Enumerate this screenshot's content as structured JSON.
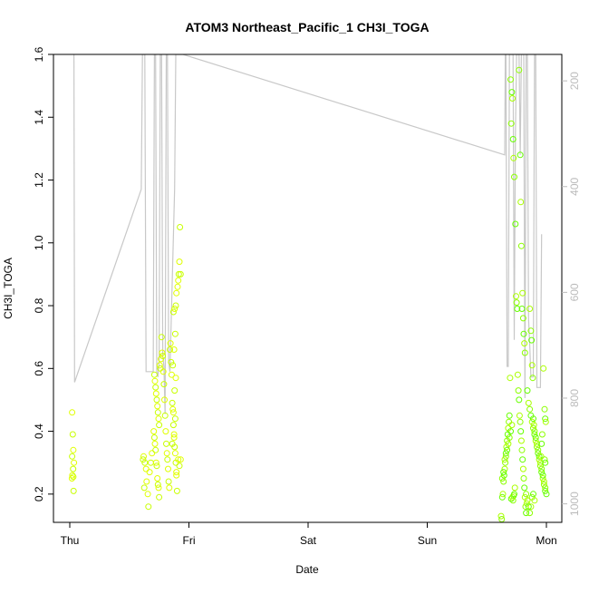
{
  "chart_data": {
    "type": "scatter",
    "title": "ATOM3 Northeast_Pacific_1 CH3I_TOGA",
    "xlabel": "Date",
    "ylabel": "CH3I_TOGA",
    "x_ticks": [
      "Thu",
      "Fri",
      "Sat",
      "Sun",
      "Mon"
    ],
    "y_ticks": [
      "0.2",
      "0.4",
      "0.6",
      "0.8",
      "1.0",
      "1.2",
      "1.4",
      "1.6"
    ],
    "y_tick_values": [
      0.2,
      0.4,
      0.6,
      0.8,
      1.0,
      1.2,
      1.4,
      1.6
    ],
    "ylim": [
      0.11,
      1.6
    ],
    "y2_ticks": [
      "200",
      "400",
      "600",
      "800",
      "1000"
    ],
    "y2_tick_values": [
      200,
      400,
      600,
      800,
      1000
    ],
    "y2lim": [
      1035,
      150
    ],
    "xlim_days": [
      -0.025,
      4.1
    ],
    "grid": false,
    "point_colors": [
      "#e0ff00",
      "#c8ff00",
      "#aaff00",
      "#8cff00",
      "#66ff00"
    ],
    "line_color": "#c8c8c8",
    "series": [
      {
        "role": "CH3I_TOGA points",
        "points": [
          [
            0.02,
            0.46
          ],
          [
            0.025,
            0.39
          ],
          [
            0.03,
            0.34
          ],
          [
            0.02,
            0.32
          ],
          [
            0.035,
            0.3
          ],
          [
            0.028,
            0.28
          ],
          [
            0.022,
            0.26
          ],
          [
            0.03,
            0.255
          ],
          [
            0.018,
            0.25
          ],
          [
            0.032,
            0.21
          ],
          [
            0.62,
            0.32
          ],
          [
            0.63,
            0.3
          ],
          [
            0.64,
            0.28
          ],
          [
            0.615,
            0.31
          ],
          [
            0.645,
            0.24
          ],
          [
            0.625,
            0.22
          ],
          [
            0.655,
            0.2
          ],
          [
            0.66,
            0.16
          ],
          [
            0.67,
            0.27
          ],
          [
            0.68,
            0.3
          ],
          [
            0.69,
            0.33
          ],
          [
            0.71,
            0.58
          ],
          [
            0.715,
            0.56
          ],
          [
            0.72,
            0.54
          ],
          [
            0.725,
            0.52
          ],
          [
            0.73,
            0.5
          ],
          [
            0.735,
            0.48
          ],
          [
            0.74,
            0.46
          ],
          [
            0.745,
            0.44
          ],
          [
            0.75,
            0.42
          ],
          [
            0.705,
            0.4
          ],
          [
            0.71,
            0.38
          ],
          [
            0.715,
            0.36
          ],
          [
            0.72,
            0.34
          ],
          [
            0.725,
            0.3
          ],
          [
            0.73,
            0.29
          ],
          [
            0.735,
            0.25
          ],
          [
            0.74,
            0.23
          ],
          [
            0.745,
            0.22
          ],
          [
            0.75,
            0.19
          ],
          [
            0.755,
            0.61
          ],
          [
            0.76,
            0.6
          ],
          [
            0.765,
            0.63
          ],
          [
            0.77,
            0.7
          ],
          [
            0.775,
            0.65
          ],
          [
            0.78,
            0.64
          ],
          [
            0.785,
            0.59
          ],
          [
            0.79,
            0.55
          ],
          [
            0.795,
            0.5
          ],
          [
            0.8,
            0.45
          ],
          [
            0.805,
            0.4
          ],
          [
            0.81,
            0.36
          ],
          [
            0.815,
            0.33
          ],
          [
            0.82,
            0.31
          ],
          [
            0.825,
            0.28
          ],
          [
            0.83,
            0.24
          ],
          [
            0.835,
            0.22
          ],
          [
            0.84,
            0.66
          ],
          [
            0.845,
            0.68
          ],
          [
            0.85,
            0.62
          ],
          [
            0.855,
            0.58
          ],
          [
            0.86,
            0.49
          ],
          [
            0.865,
            0.47
          ],
          [
            0.87,
            0.42
          ],
          [
            0.875,
            0.38
          ],
          [
            0.88,
            0.35
          ],
          [
            0.885,
            0.33
          ],
          [
            0.89,
            0.3
          ],
          [
            0.895,
            0.27
          ],
          [
            0.87,
            0.78
          ],
          [
            0.88,
            0.79
          ],
          [
            0.89,
            0.8
          ],
          [
            0.895,
            0.84
          ],
          [
            0.885,
            0.71
          ],
          [
            0.875,
            0.66
          ],
          [
            0.865,
            0.61
          ],
          [
            0.89,
            0.57
          ],
          [
            0.88,
            0.53
          ],
          [
            0.87,
            0.46
          ],
          [
            0.885,
            0.44
          ],
          [
            0.875,
            0.39
          ],
          [
            0.86,
            0.36
          ],
          [
            0.895,
            0.26
          ],
          [
            0.9,
            0.21
          ],
          [
            0.91,
            0.88
          ],
          [
            0.915,
            0.9
          ],
          [
            0.92,
            0.94
          ],
          [
            0.925,
            1.05
          ],
          [
            0.905,
            0.86
          ],
          [
            0.93,
            0.9
          ],
          [
            0.91,
            0.31
          ],
          [
            0.92,
            0.29
          ],
          [
            0.93,
            0.31
          ],
          [
            3.62,
            0.13
          ],
          [
            3.625,
            0.12
          ],
          [
            3.63,
            0.19
          ],
          [
            3.635,
            0.2
          ],
          [
            3.64,
            0.24
          ],
          [
            3.645,
            0.26
          ],
          [
            3.65,
            0.28
          ],
          [
            3.655,
            0.3
          ],
          [
            3.66,
            0.33
          ],
          [
            3.665,
            0.35
          ],
          [
            3.67,
            0.37
          ],
          [
            3.675,
            0.39
          ],
          [
            3.68,
            0.41
          ],
          [
            3.685,
            0.43
          ],
          [
            3.69,
            0.45
          ],
          [
            3.695,
            0.57
          ],
          [
            3.63,
            0.25
          ],
          [
            3.64,
            0.27
          ],
          [
            3.65,
            0.31
          ],
          [
            3.66,
            0.32
          ],
          [
            3.67,
            0.34
          ],
          [
            3.68,
            0.36
          ],
          [
            3.69,
            0.38
          ],
          [
            3.7,
            0.4
          ],
          [
            3.71,
            0.42
          ],
          [
            3.72,
            0.18
          ],
          [
            3.705,
            0.185
          ],
          [
            3.715,
            0.19
          ],
          [
            3.725,
            0.195
          ],
          [
            3.73,
            0.2
          ],
          [
            3.735,
            0.22
          ],
          [
            3.7,
            1.52
          ],
          [
            3.71,
            1.48
          ],
          [
            3.715,
            1.46
          ],
          [
            3.705,
            1.38
          ],
          [
            3.72,
            1.33
          ],
          [
            3.725,
            1.27
          ],
          [
            3.73,
            1.21
          ],
          [
            3.74,
            1.06
          ],
          [
            3.745,
            0.83
          ],
          [
            3.75,
            0.81
          ],
          [
            3.755,
            0.79
          ],
          [
            3.76,
            0.58
          ],
          [
            3.765,
            0.53
          ],
          [
            3.77,
            0.5
          ],
          [
            3.775,
            0.45
          ],
          [
            3.78,
            0.43
          ],
          [
            3.785,
            0.4
          ],
          [
            3.79,
            0.37
          ],
          [
            3.795,
            0.34
          ],
          [
            3.8,
            0.31
          ],
          [
            3.805,
            0.28
          ],
          [
            3.81,
            0.25
          ],
          [
            3.815,
            0.22
          ],
          [
            3.82,
            0.19
          ],
          [
            3.825,
            0.16
          ],
          [
            3.83,
            0.14
          ],
          [
            3.835,
            0.17
          ],
          [
            3.77,
            1.55
          ],
          [
            3.78,
            1.28
          ],
          [
            3.785,
            1.13
          ],
          [
            3.79,
            0.99
          ],
          [
            3.795,
            0.79
          ],
          [
            3.8,
            0.84
          ],
          [
            3.805,
            0.76
          ],
          [
            3.81,
            0.71
          ],
          [
            3.815,
            0.68
          ],
          [
            3.82,
            0.65
          ],
          [
            3.84,
            0.53
          ],
          [
            3.85,
            0.49
          ],
          [
            3.86,
            0.47
          ],
          [
            3.87,
            0.45
          ],
          [
            3.88,
            0.43
          ],
          [
            3.89,
            0.41
          ],
          [
            3.9,
            0.39
          ],
          [
            3.91,
            0.37
          ],
          [
            3.92,
            0.35
          ],
          [
            3.93,
            0.33
          ],
          [
            3.94,
            0.31
          ],
          [
            3.95,
            0.29
          ],
          [
            3.96,
            0.27
          ],
          [
            3.97,
            0.25
          ],
          [
            3.98,
            0.23
          ],
          [
            3.99,
            0.21
          ],
          [
            3.86,
            0.79
          ],
          [
            3.87,
            0.72
          ],
          [
            3.875,
            0.69
          ],
          [
            3.88,
            0.61
          ],
          [
            3.885,
            0.57
          ],
          [
            3.89,
            0.44
          ],
          [
            3.895,
            0.42
          ],
          [
            3.9,
            0.4
          ],
          [
            3.91,
            0.38
          ],
          [
            3.92,
            0.36
          ],
          [
            3.93,
            0.34
          ],
          [
            3.94,
            0.32
          ],
          [
            3.95,
            0.3
          ],
          [
            3.96,
            0.28
          ],
          [
            3.97,
            0.26
          ],
          [
            3.98,
            0.24
          ],
          [
            3.99,
            0.22
          ],
          [
            4.0,
            0.2
          ],
          [
            3.975,
            0.6
          ],
          [
            3.985,
            0.47
          ],
          [
            3.99,
            0.44
          ],
          [
            3.995,
            0.43
          ],
          [
            3.965,
            0.39
          ],
          [
            3.96,
            0.36
          ],
          [
            3.955,
            0.32
          ],
          [
            3.985,
            0.31
          ],
          [
            3.99,
            0.3
          ],
          [
            3.87,
            0.16
          ],
          [
            3.88,
            0.19
          ],
          [
            3.89,
            0.2
          ],
          [
            3.9,
            0.18
          ],
          [
            3.86,
            0.14
          ],
          [
            3.85,
            0.16
          ],
          [
            3.84,
            0.18
          ],
          [
            3.83,
            0.2
          ]
        ]
      },
      {
        "role": "grey trace (right axis)",
        "points": [
          [
            0.03,
            150
          ],
          [
            0.035,
            150
          ],
          [
            0.04,
            770
          ],
          [
            0.6,
            405
          ],
          [
            0.61,
            150
          ],
          [
            0.62,
            150
          ],
          [
            0.63,
            150
          ],
          [
            0.64,
            750
          ],
          [
            0.7,
            750
          ],
          [
            0.71,
            150
          ],
          [
            0.72,
            150
          ],
          [
            0.73,
            750
          ],
          [
            0.74,
            760
          ],
          [
            0.75,
            730
          ],
          [
            0.76,
            150
          ],
          [
            0.77,
            150
          ],
          [
            0.78,
            720
          ],
          [
            0.79,
            740
          ],
          [
            0.8,
            830
          ],
          [
            0.81,
            150
          ],
          [
            0.82,
            150
          ],
          [
            0.83,
            730
          ],
          [
            0.84,
            750
          ],
          [
            0.88,
            405
          ],
          [
            0.89,
            150
          ],
          [
            0.9,
            150
          ],
          [
            0.92,
            150
          ],
          [
            0.95,
            150
          ],
          [
            3.65,
            340
          ],
          [
            3.655,
            150
          ],
          [
            3.66,
            150
          ],
          [
            3.67,
            740
          ],
          [
            3.68,
            740
          ],
          [
            3.69,
            150
          ],
          [
            3.7,
            150
          ],
          [
            3.72,
            150
          ],
          [
            3.73,
            690
          ],
          [
            3.74,
            300
          ],
          [
            3.75,
            150
          ],
          [
            3.76,
            150
          ],
          [
            3.77,
            150
          ],
          [
            3.78,
            340
          ],
          [
            3.79,
            150
          ],
          [
            3.8,
            150
          ],
          [
            3.81,
            150
          ],
          [
            3.82,
            800
          ],
          [
            3.83,
            150
          ],
          [
            3.84,
            150
          ],
          [
            3.85,
            650
          ],
          [
            3.86,
            700
          ],
          [
            3.87,
            760
          ],
          [
            3.88,
            760
          ],
          [
            3.89,
            760
          ],
          [
            3.9,
            150
          ],
          [
            3.91,
            150
          ],
          [
            3.92,
            780
          ],
          [
            3.95,
            780
          ],
          [
            3.96,
            490
          ]
        ]
      }
    ]
  }
}
